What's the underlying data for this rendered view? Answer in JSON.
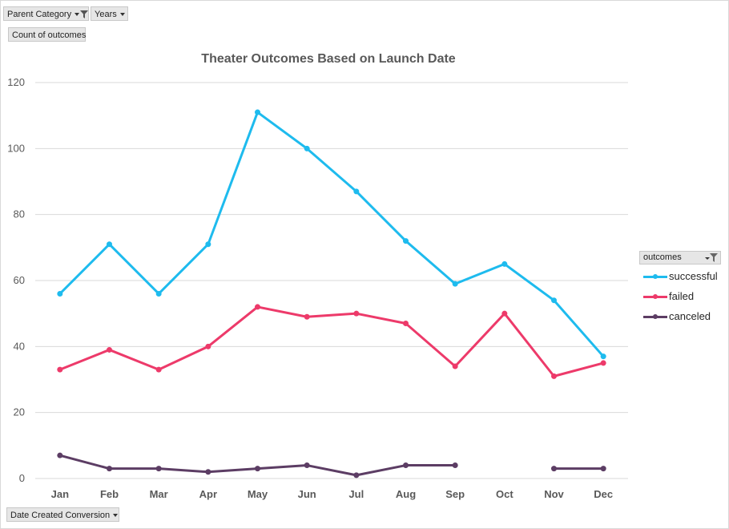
{
  "filters": {
    "parent_category_label": "Parent Category",
    "years_label": "Years",
    "values_label": "Count of outcomes",
    "axis_field_label": "Date Created Conversion"
  },
  "legend": {
    "title": "outcomes"
  },
  "colors": {
    "successful": "#1ebbee",
    "failed": "#ed3a6a",
    "canceled": "#5c3d64",
    "grid": "#d9d9d9",
    "axis_text": "#595959"
  },
  "chart_data": {
    "type": "line",
    "title": "Theater Outcomes Based on Launch Date",
    "xlabel": "",
    "ylabel": "",
    "ylim": [
      0,
      120
    ],
    "yticks": [
      0,
      20,
      40,
      60,
      80,
      100,
      120
    ],
    "categories": [
      "Jan",
      "Feb",
      "Mar",
      "Apr",
      "May",
      "Jun",
      "Jul",
      "Aug",
      "Sep",
      "Oct",
      "Nov",
      "Dec"
    ],
    "grid": true,
    "legend_position": "right",
    "series": [
      {
        "name": "successful",
        "values": [
          56,
          71,
          56,
          71,
          111,
          100,
          87,
          72,
          59,
          65,
          54,
          37
        ]
      },
      {
        "name": "failed",
        "values": [
          33,
          39,
          33,
          40,
          52,
          49,
          50,
          47,
          34,
          50,
          31,
          35
        ]
      },
      {
        "name": "canceled",
        "values": [
          7,
          3,
          3,
          2,
          3,
          4,
          1,
          4,
          4,
          null,
          3,
          3
        ]
      }
    ]
  }
}
